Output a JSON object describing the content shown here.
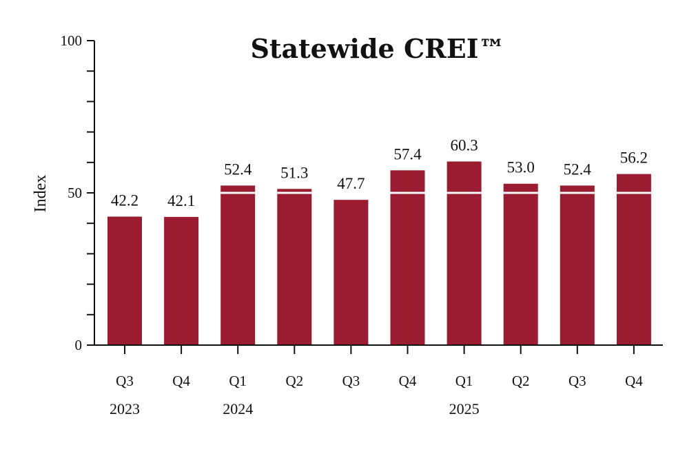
{
  "chart_data": {
    "type": "bar",
    "title": "Statewide CREI™",
    "xlabel": "",
    "ylabel": "Index",
    "ylim": [
      0,
      100
    ],
    "yticks": [
      0,
      50,
      100
    ],
    "categories": [
      "Q3",
      "Q4",
      "Q1",
      "Q2",
      "Q3",
      "Q4",
      "Q1",
      "Q2",
      "Q3",
      "Q4"
    ],
    "years": [
      {
        "label": "2023",
        "start": 0
      },
      {
        "label": "2024",
        "start": 2
      },
      {
        "label": "2025",
        "start": 6
      }
    ],
    "values": [
      42.2,
      42.1,
      52.4,
      51.3,
      47.7,
      57.4,
      60.3,
      53.0,
      52.4,
      56.2
    ],
    "data_labels": [
      "42.2",
      "42.1",
      "52.4",
      "51.3",
      "47.7",
      "57.4",
      "60.3",
      "53.0",
      "52.4",
      "56.2"
    ],
    "reference_line": 50,
    "grid": false,
    "bar_color": "#9b1b30",
    "reference_line_color": "#ffffff"
  }
}
